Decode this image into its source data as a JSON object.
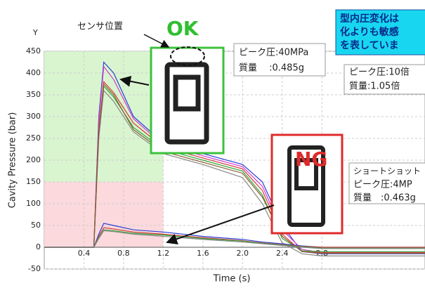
{
  "chart_data": {
    "type": "line",
    "x_label": "Time (s)",
    "y_label": "Cavity Pressure (bar)",
    "y_axis_title": "Y",
    "xlim": [
      0,
      3.84
    ],
    "ylim": [
      -50,
      450
    ],
    "xticks": [
      0.4,
      0.8,
      1.2,
      1.6,
      {
        "value": 2,
        "label": "2.0"
      },
      2.4,
      2.8
    ],
    "yticks": [
      -50,
      0,
      50,
      100,
      150,
      200,
      250,
      300,
      350,
      400,
      450
    ],
    "grid": true,
    "shaded_regions": [
      {
        "x": [
          0,
          1.2
        ],
        "y": [
          150,
          450
        ],
        "color": "#d9f5d0"
      },
      {
        "x": [
          0,
          1.2
        ],
        "y": [
          0,
          150
        ],
        "color": "#fbd9dc"
      }
    ],
    "x": [
      0,
      0.45,
      0.5,
      0.55,
      0.6,
      0.7,
      0.9,
      1.2,
      1.6,
      2.0,
      2.2,
      2.4,
      2.6,
      2.8,
      3.2,
      3.84
    ],
    "series": [
      {
        "color": "#2b3fd6",
        "values": [
          0,
          0,
          0,
          300,
          425,
          400,
          300,
          240,
          215,
          190,
          150,
          50,
          -10,
          -15,
          -15,
          -15
        ]
      },
      {
        "color": "#d23ad0",
        "values": [
          0,
          0,
          0,
          290,
          415,
          385,
          295,
          235,
          210,
          185,
          140,
          40,
          -5,
          -12,
          -12,
          -12
        ]
      },
      {
        "color": "#d23a3a",
        "values": [
          0,
          0,
          0,
          270,
          380,
          355,
          285,
          230,
          205,
          180,
          130,
          30,
          -10,
          -12,
          -12,
          -12
        ]
      },
      {
        "color": "#2fa53a",
        "values": [
          0,
          0,
          0,
          260,
          370,
          345,
          275,
          225,
          200,
          175,
          120,
          20,
          -8,
          -10,
          -10,
          -10
        ]
      },
      {
        "color": "#888888",
        "values": [
          0,
          0,
          0,
          250,
          360,
          335,
          265,
          215,
          190,
          160,
          100,
          10,
          -15,
          -20,
          -20,
          -20
        ]
      },
      {
        "color": "#8a5a2a",
        "values": [
          0,
          0,
          0,
          265,
          375,
          350,
          270,
          220,
          195,
          170,
          115,
          25,
          -10,
          -14,
          -14,
          -14
        ]
      },
      {
        "color": "#2b3fd6",
        "values": [
          0,
          0,
          0,
          30,
          55,
          50,
          40,
          35,
          25,
          18,
          12,
          8,
          3,
          0,
          0,
          0
        ]
      },
      {
        "color": "#d23a3a",
        "values": [
          0,
          0,
          0,
          25,
          45,
          42,
          35,
          30,
          22,
          15,
          10,
          6,
          2,
          0,
          0,
          0
        ]
      },
      {
        "color": "#2fa53a",
        "values": [
          0,
          0,
          0,
          22,
          40,
          38,
          32,
          28,
          20,
          14,
          9,
          5,
          1,
          -2,
          -2,
          -2
        ]
      },
      {
        "color": "#888888",
        "values": [
          0,
          0,
          0,
          20,
          38,
          36,
          30,
          25,
          18,
          12,
          8,
          4,
          0,
          -3,
          -3,
          -3
        ]
      }
    ]
  },
  "annotations": {
    "sensor": "センサ位置",
    "ok": "OK",
    "ng": "NG",
    "note": [
      "型内圧変化は",
      "化よりも敏感",
      "を表していま"
    ],
    "ok_box": [
      "ピーク圧:40MPa",
      "質量　 :0.485g"
    ],
    "ratio_box": [
      "ピーク圧:10倍",
      "質量:1.05倍"
    ],
    "ng_box": [
      "ショートショット",
      "ピーク圧:4MP",
      "質量　:0.463g"
    ]
  }
}
